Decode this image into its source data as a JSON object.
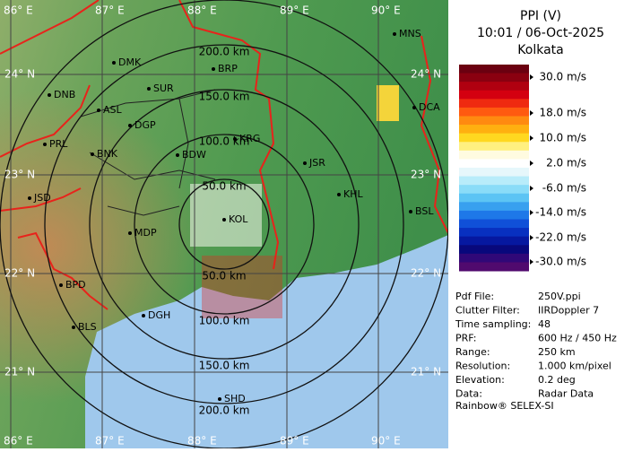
{
  "header": {
    "title": "PPI (V)",
    "time": "10:01 / 06-Oct-2025",
    "station": "Kolkata"
  },
  "colorbar": {
    "labels": [
      "30.0 m/s",
      "18.0 m/s",
      "10.0 m/s",
      "2.0 m/s",
      "-6.0 m/s",
      "-14.0 m/s",
      "-22.0 m/s",
      "-30.0 m/s"
    ]
  },
  "info": [
    [
      "Pdf File:",
      "250V.ppi"
    ],
    [
      "Clutter Filter:",
      "IIRDoppler 7"
    ],
    [
      "Time sampling:",
      "48"
    ],
    [
      "PRF:",
      "600 Hz / 450 Hz"
    ],
    [
      "Range:",
      "250 km"
    ],
    [
      "Resolution:",
      "1.000 km/pixel"
    ],
    [
      "Elevation:",
      "0.2 deg"
    ],
    [
      "Data:",
      "Radar Data"
    ]
  ],
  "footer": "Rainbow® SELEX-SI",
  "map": {
    "lon_labels": [
      "86° E",
      "87° E",
      "88° E",
      "89° E",
      "90° E"
    ],
    "lat_labels": [
      "24° N",
      "23° N",
      "22° N",
      "21° N"
    ],
    "ring_labels": [
      "50.0 km",
      "100.0 km",
      "150.0 km",
      "200.0 km"
    ],
    "cities": [
      "MNS",
      "DMK",
      "BRP",
      "DNB",
      "SUR",
      "ASL",
      "DGP",
      "DCA",
      "PRL",
      "BNK",
      "KRG",
      "BDW",
      "JSR",
      "KHL",
      "JSD",
      "BSL",
      "MDP",
      "BPD",
      "DGH",
      "BLS",
      "SHD",
      "KOL"
    ]
  }
}
